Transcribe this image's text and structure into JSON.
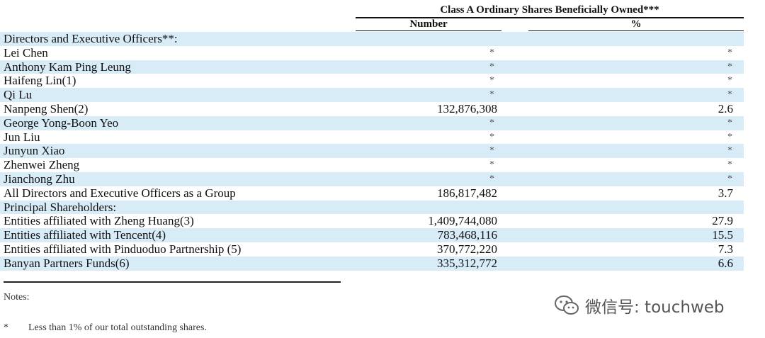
{
  "header": {
    "title": "Class A Ordinary Shares Beneficially Owned***",
    "col_number": "Number",
    "col_percent": "%"
  },
  "rows": [
    {
      "name": "Directors and Executive Officers**:",
      "number": "",
      "percent": ""
    },
    {
      "name": "Lei Chen",
      "number": "*",
      "percent": "*"
    },
    {
      "name": "Anthony Kam Ping Leung",
      "number": "*",
      "percent": "*"
    },
    {
      "name": "Haifeng Lin(1)",
      "number": "*",
      "percent": "*"
    },
    {
      "name": "Qi Lu",
      "number": "*",
      "percent": "*"
    },
    {
      "name": "Nanpeng Shen(2)",
      "number": "132,876,308",
      "percent": "2.6"
    },
    {
      "name": "George Yong-Boon Yeo",
      "number": "*",
      "percent": "*"
    },
    {
      "name": "Jun Liu",
      "number": "*",
      "percent": "*"
    },
    {
      "name": "Junyun Xiao",
      "number": "*",
      "percent": "*"
    },
    {
      "name": "Zhenwei Zheng",
      "number": "*",
      "percent": "*"
    },
    {
      "name": "Jianchong Zhu",
      "number": "*",
      "percent": "*"
    },
    {
      "name": "All Directors and Executive Officers as a Group",
      "number": "186,817,482",
      "percent": "3.7"
    },
    {
      "name": "Principal Shareholders:",
      "number": "",
      "percent": ""
    },
    {
      "name": "Entities affiliated with Zheng Huang(3)",
      "number": "1,409,744,080",
      "percent": "27.9"
    },
    {
      "name": "Entities affiliated with Tencent(4)",
      "number": "783,468,116",
      "percent": "15.5"
    },
    {
      "name": "Entities affiliated with Pinduoduo Partnership (5)",
      "number": "370,772,220",
      "percent": "7.3"
    },
    {
      "name": "Banyan Partners Funds(6)",
      "number": "335,312,772",
      "percent": "6.6"
    }
  ],
  "notes": {
    "label": "Notes:",
    "footnote_mark": "*",
    "footnote_text": "Less than 1% of our total outstanding shares."
  },
  "watermark": {
    "icon": "wechat-icon",
    "text": "微信号: touchweb"
  },
  "colors": {
    "row_shade": "#d8ecf8",
    "text": "#111111"
  }
}
